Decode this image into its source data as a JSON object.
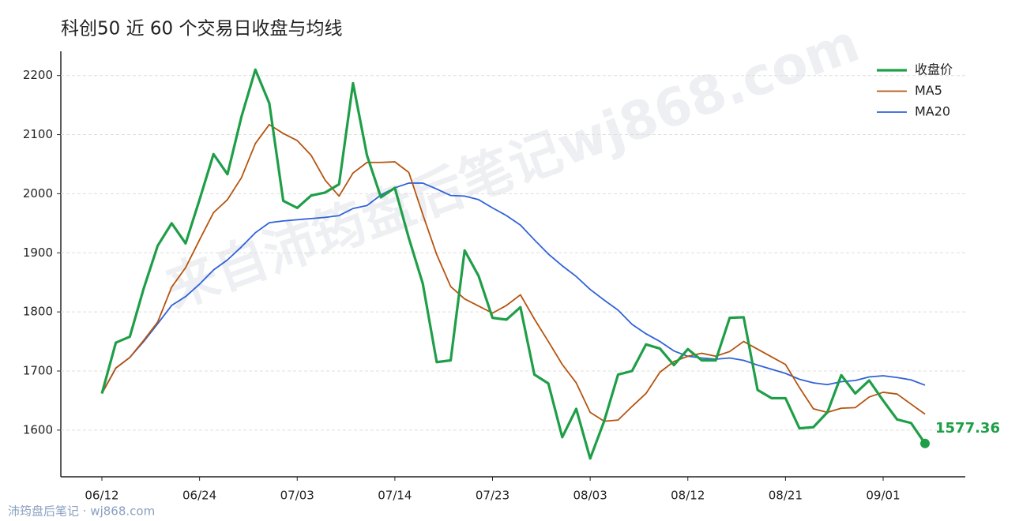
{
  "chart_data": {
    "type": "line",
    "title": "科创50 近 60 个交易日收盘与均线",
    "watermark": "来自沛筠盘后笔记wj868.com",
    "footer": "沛筠盘后笔记 · wj868.com",
    "categories": [
      "06/12",
      null,
      null,
      null,
      null,
      null,
      null,
      "06/24",
      null,
      null,
      null,
      null,
      null,
      null,
      "07/03",
      null,
      null,
      null,
      null,
      null,
      null,
      "07/14",
      null,
      null,
      null,
      null,
      null,
      null,
      "07/23",
      null,
      null,
      null,
      null,
      null,
      null,
      "08/03",
      null,
      null,
      null,
      null,
      null,
      null,
      "08/12",
      null,
      null,
      null,
      null,
      null,
      null,
      "08/21",
      null,
      null,
      null,
      null,
      null,
      null,
      "09/01",
      null,
      null,
      null
    ],
    "series": [
      {
        "name": "收盘价",
        "color": "#1f9e48",
        "values": [
          1662,
          1748,
          1758,
          1840,
          1912,
          1950,
          1916,
          1990,
          2067,
          2033,
          2130,
          2210,
          2153,
          1988,
          1976,
          1997,
          2002,
          2016,
          2187,
          2065,
          1994,
          2010,
          1925,
          1848,
          1715,
          1718,
          1904,
          1861,
          1790,
          1787,
          1808,
          1694,
          1679,
          1588,
          1636,
          1552,
          1615,
          1694,
          1700,
          1745,
          1738,
          1710,
          1737,
          1718,
          1718,
          1790,
          1791,
          1668,
          1654,
          1654,
          1603,
          1605,
          1630,
          1693,
          1662,
          1684,
          1650,
          1618,
          1612,
          1577.36
        ]
      },
      {
        "name": "MA5",
        "color": "#b5540f",
        "values": [
          1662,
          1705,
          1723,
          1752,
          1783,
          1842,
          1875,
          1922,
          1968,
          1990,
          2027,
          2085,
          2117,
          2102,
          2090,
          2065,
          2023,
          1996,
          2035,
          2053,
          2053,
          2054,
          2036,
          1965,
          1897,
          1843,
          1822,
          1810,
          1798,
          1811,
          1829,
          1788,
          1750,
          1711,
          1680,
          1630,
          1615,
          1617,
          1640,
          1662,
          1698,
          1716,
          1725,
          1730,
          1725,
          1733,
          1750,
          1737,
          1724,
          1711,
          1672,
          1636,
          1630,
          1637,
          1638,
          1656,
          1664,
          1661,
          1644,
          1627
        ]
      },
      {
        "name": "MA20",
        "color": "#2f62d9",
        "values": [
          1662,
          1705,
          1723,
          1750,
          1780,
          1811,
          1826,
          1847,
          1871,
          1888,
          1910,
          1934,
          1951,
          1954,
          1956,
          1958,
          1960,
          1963,
          1975,
          1980,
          1998,
          2010,
          2018,
          2018,
          2008,
          1997,
          1996,
          1990,
          1976,
          1963,
          1947,
          1922,
          1898,
          1878,
          1860,
          1838,
          1820,
          1803,
          1779,
          1763,
          1750,
          1734,
          1725,
          1722,
          1720,
          1722,
          1718,
          1710,
          1703,
          1696,
          1686,
          1680,
          1677,
          1682,
          1684,
          1690,
          1692,
          1689,
          1685,
          1676
        ]
      }
    ],
    "ylim": [
      1521,
      2241
    ],
    "yticks": [
      1600,
      1700,
      1800,
      1900,
      2000,
      2100,
      2200
    ],
    "grid": true,
    "legend": "upper right"
  }
}
